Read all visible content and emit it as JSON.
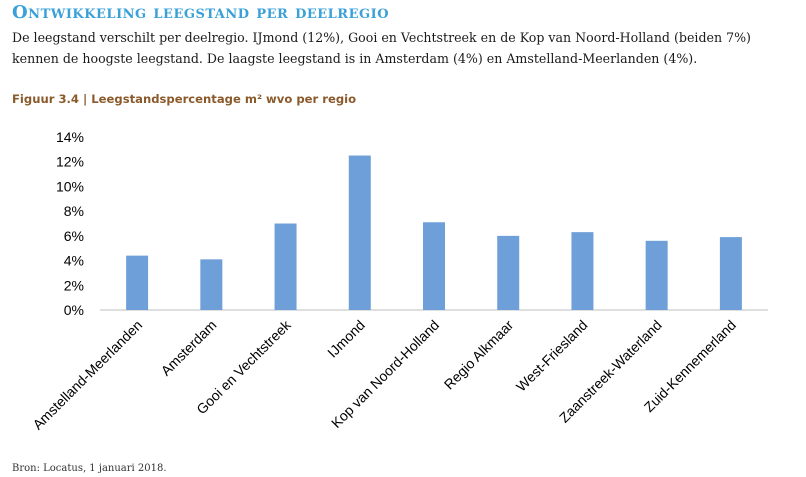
{
  "heading": "Ontwikkeling leegstand per deelregio",
  "intro": "De leegstand verschilt per deelregio. IJmond (12%), Gooi en Vechtstreek en de Kop van Noord-Holland (beiden 7%) kennen de hoogste leegstand. De laagste leegstand is in Amsterdam (4%) en Amstelland-Meerlanden (4%).",
  "figure_title": "Figuur 3.4 | Leegstandspercentage m² wvo per regio",
  "source": "Bron: Locatus, 1 januari 2018.",
  "colors": {
    "bar": "#6f9fd8",
    "heading": "#3aa0d8",
    "figure_title": "#8b5a2b"
  },
  "chart_data": {
    "type": "bar",
    "categories": [
      "Amstelland-Meerlanden",
      "Amsterdam",
      "Gooi en Vechtstreek",
      "IJmond",
      "Kop van Noord-Holland",
      "Regio Alkmaar",
      "West-Friesland",
      "Zaanstreek-Waterland",
      "Zuid-Kennemerland"
    ],
    "values": [
      4.4,
      4.1,
      7.0,
      12.5,
      7.1,
      6.0,
      6.3,
      5.6,
      5.9
    ],
    "yticks": [
      "0%",
      "2%",
      "4%",
      "6%",
      "8%",
      "10%",
      "12%",
      "14%"
    ],
    "ylim": [
      0,
      14
    ],
    "grid": false,
    "legend": "none"
  }
}
